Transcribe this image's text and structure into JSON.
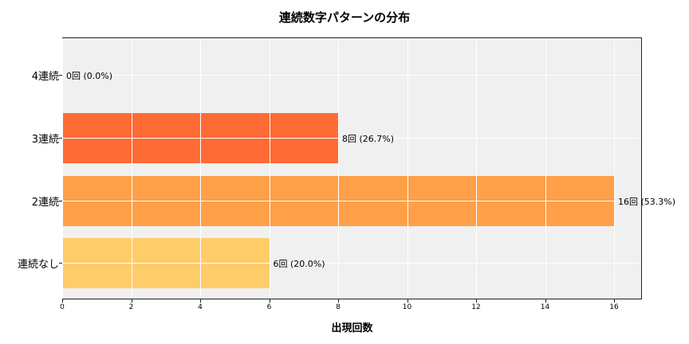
{
  "chart_data": {
    "type": "bar",
    "orientation": "horizontal",
    "title": "連続数字パターンの分布",
    "xlabel": "出現回数",
    "ylabel": "",
    "categories": [
      "4連続",
      "3連続",
      "2連続",
      "連続なし"
    ],
    "values": [
      0,
      8,
      16,
      6
    ],
    "percentages": [
      0.0,
      26.7,
      53.3,
      20.0
    ],
    "data_labels": [
      "0回 (0.0%)",
      "8回 (26.7%)",
      "16回 (53.3%)",
      "6回 (20.0%)"
    ],
    "colors": [
      "#FF6B35",
      "#FF6B35",
      "#FFA048",
      "#FFCC6A"
    ],
    "xlim": [
      0,
      16.8
    ],
    "xticks": [
      0,
      2,
      4,
      6,
      8,
      10,
      12,
      14,
      16
    ],
    "grid": true,
    "legend": null,
    "background": "#F0F0F0"
  }
}
